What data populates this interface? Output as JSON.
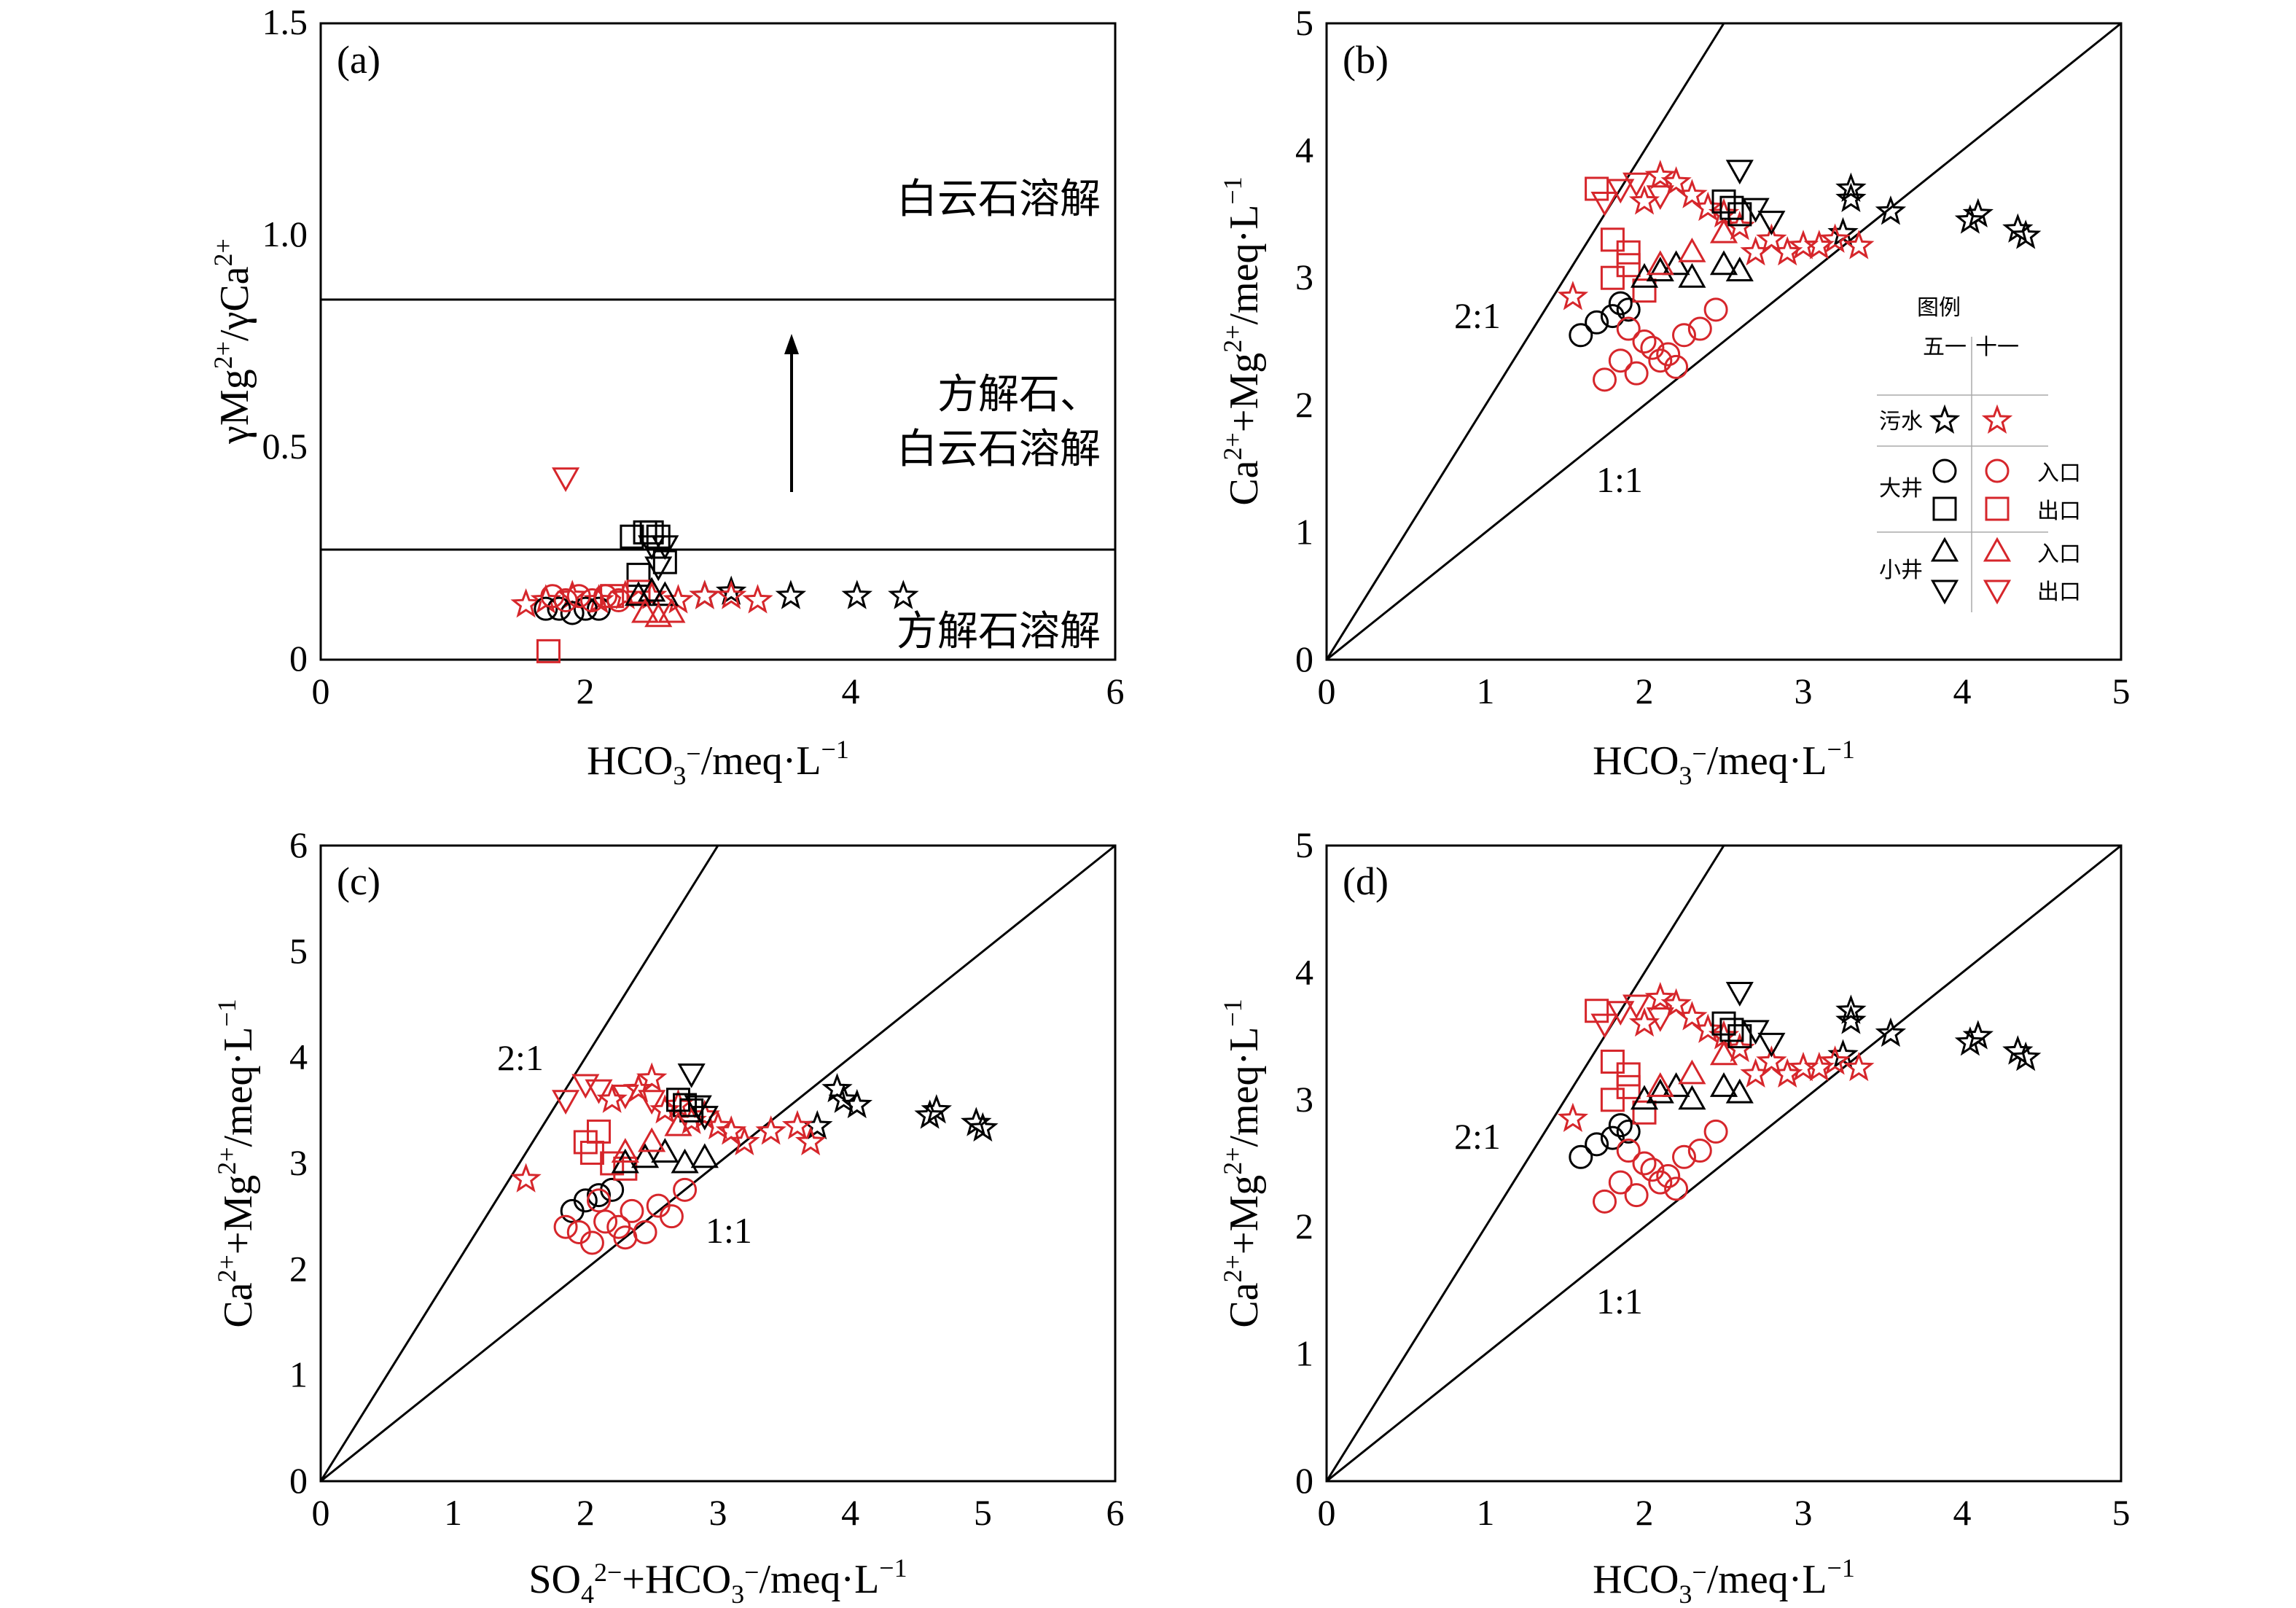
{
  "figure": {
    "legend": {
      "title": "图例",
      "col1": "五一",
      "col2": "十一",
      "rows": [
        {
          "group": "污水",
          "marker": "star",
          "sub": ""
        },
        {
          "group": "大井",
          "marker": "circle",
          "sub": "入口"
        },
        {
          "group": "",
          "marker": "square",
          "sub": "出口"
        },
        {
          "group": "小井",
          "marker": "triangle-up",
          "sub": "入口"
        },
        {
          "group": "",
          "marker": "triangle-down",
          "sub": "出口"
        }
      ]
    },
    "colors": {
      "wuyi": "#000000",
      "shiyi": "#d6262b"
    }
  },
  "chart_data": [
    {
      "panel": "(a)",
      "type": "scatter",
      "xlabel": "HCO3−/meq·L−1",
      "ylabel": "γMg2+/γCa2+",
      "xlim": [
        0,
        6
      ],
      "ylim": [
        0,
        1.5
      ],
      "xticks": [
        "0",
        "2",
        "4",
        "6"
      ],
      "yticks": [
        "0",
        "0.5",
        "1.0",
        "1.5"
      ],
      "hlines": [
        0.26,
        0.85
      ],
      "zones": [
        "白云石溶解",
        "方解石、",
        "白云石溶解",
        "方解石溶解"
      ],
      "series": [
        {
          "name": "五一 污水",
          "marker": "star",
          "color": "#000000",
          "x": [
            3.55,
            4.05,
            4.4,
            2.9,
            3.1
          ],
          "y": [
            0.15,
            0.15,
            0.15,
            0.15,
            0.16
          ]
        },
        {
          "name": "十一 污水",
          "marker": "star",
          "color": "#d6262b",
          "x": [
            1.55,
            1.7,
            1.9,
            2.1,
            2.3,
            2.5,
            2.7,
            2.9,
            3.1,
            3.3
          ],
          "y": [
            0.13,
            0.14,
            0.15,
            0.14,
            0.15,
            0.15,
            0.14,
            0.15,
            0.15,
            0.14
          ]
        },
        {
          "name": "五一 大井入口",
          "marker": "circle",
          "color": "#000000",
          "x": [
            1.7,
            1.8,
            1.9,
            2.0,
            2.1
          ],
          "y": [
            0.12,
            0.12,
            0.11,
            0.12,
            0.12
          ]
        },
        {
          "name": "十一 大井入口",
          "marker": "circle",
          "color": "#d6262b",
          "x": [
            1.75,
            1.85,
            1.95,
            2.05,
            2.15,
            2.25
          ],
          "y": [
            0.15,
            0.14,
            0.15,
            0.14,
            0.15,
            0.14
          ]
        },
        {
          "name": "五一 大井出口",
          "marker": "square",
          "color": "#000000",
          "x": [
            2.35,
            2.45,
            2.5,
            2.55,
            2.6,
            2.4
          ],
          "y": [
            0.29,
            0.3,
            0.3,
            0.29,
            0.23,
            0.2
          ]
        },
        {
          "name": "十一 大井出口",
          "marker": "square",
          "color": "#d6262b",
          "x": [
            1.72,
            2.2,
            2.4
          ],
          "y": [
            0.02,
            0.15,
            0.16
          ]
        },
        {
          "name": "五一 小井入口",
          "marker": "triangle-up",
          "color": "#000000",
          "x": [
            2.4,
            2.5,
            2.6
          ],
          "y": [
            0.15,
            0.16,
            0.15
          ]
        },
        {
          "name": "十一 小井入口",
          "marker": "triangle-up",
          "color": "#d6262b",
          "x": [
            2.45,
            2.55,
            2.65
          ],
          "y": [
            0.11,
            0.1,
            0.11
          ]
        },
        {
          "name": "五一 小井出口",
          "marker": "triangle-down",
          "color": "#000000",
          "x": [
            2.5,
            2.6,
            2.55
          ],
          "y": [
            0.27,
            0.27,
            0.22
          ]
        },
        {
          "name": "十一 小井出口",
          "marker": "triangle-down",
          "color": "#d6262b",
          "x": [
            1.85
          ],
          "y": [
            0.43
          ]
        }
      ]
    },
    {
      "panel": "(b)",
      "type": "scatter",
      "xlabel": "HCO3−/meq·L−1",
      "ylabel": "Ca2++Mg2+/meq·L−1",
      "xlim": [
        0,
        5
      ],
      "ylim": [
        0,
        5
      ],
      "xticks": [
        "0",
        "1",
        "2",
        "3",
        "4",
        "5"
      ],
      "yticks": [
        "0",
        "1",
        "2",
        "3",
        "4",
        "5"
      ],
      "reflines": [
        {
          "label": "2:1",
          "slope": 2
        },
        {
          "label": "1:1",
          "slope": 1
        }
      ],
      "series": [
        {
          "name": "五一 污水",
          "marker": "star",
          "color": "#000000",
          "x": [
            3.3,
            3.3,
            3.25,
            3.55,
            4.05,
            4.1,
            4.35,
            4.4
          ],
          "y": [
            3.7,
            3.62,
            3.35,
            3.52,
            3.45,
            3.5,
            3.38,
            3.33
          ]
        },
        {
          "name": "十一 污水",
          "marker": "star",
          "color": "#d6262b",
          "x": [
            1.55,
            2.0,
            2.2,
            2.4,
            2.6,
            2.8,
            3.0,
            3.2,
            3.35,
            2.1,
            2.3,
            2.5,
            2.7,
            2.9,
            3.1
          ],
          "y": [
            2.85,
            3.6,
            3.75,
            3.55,
            3.4,
            3.3,
            3.25,
            3.3,
            3.25,
            3.8,
            3.65,
            3.5,
            3.2,
            3.2,
            3.25
          ]
        },
        {
          "name": "五一 大井入口",
          "marker": "circle",
          "color": "#000000",
          "x": [
            1.6,
            1.7,
            1.8,
            1.85,
            1.9
          ],
          "y": [
            2.55,
            2.65,
            2.7,
            2.8,
            2.75
          ]
        },
        {
          "name": "十一 大井入口",
          "marker": "circle",
          "color": "#d6262b",
          "x": [
            1.75,
            1.85,
            1.95,
            2.05,
            2.15,
            2.25,
            2.35,
            2.45,
            1.9,
            2.0,
            2.1,
            2.2
          ],
          "y": [
            2.2,
            2.35,
            2.25,
            2.45,
            2.4,
            2.55,
            2.6,
            2.75,
            2.6,
            2.5,
            2.35,
            2.3
          ]
        },
        {
          "name": "五一 大井出口",
          "marker": "square",
          "color": "#000000",
          "x": [
            2.5,
            2.55,
            2.6
          ],
          "y": [
            3.6,
            3.55,
            3.5
          ]
        },
        {
          "name": "十一 大井出口",
          "marker": "square",
          "color": "#d6262b",
          "x": [
            1.7,
            1.8,
            1.9,
            1.8,
            1.9,
            2.0
          ],
          "y": [
            3.7,
            3.3,
            3.2,
            3.0,
            3.1,
            2.9
          ]
        },
        {
          "name": "五一 小井入口",
          "marker": "triangle-up",
          "color": "#000000",
          "x": [
            2.0,
            2.1,
            2.2,
            2.3,
            2.5,
            2.6
          ],
          "y": [
            3.0,
            3.05,
            3.1,
            3.0,
            3.1,
            3.05
          ]
        },
        {
          "name": "十一 小井入口",
          "marker": "triangle-up",
          "color": "#d6262b",
          "x": [
            2.1,
            2.3,
            2.5
          ],
          "y": [
            3.1,
            3.2,
            3.35
          ]
        },
        {
          "name": "五一 小井出口",
          "marker": "triangle-down",
          "color": "#000000",
          "x": [
            2.6,
            2.7,
            2.8
          ],
          "y": [
            3.85,
            3.55,
            3.45
          ]
        },
        {
          "name": "十一 小井出口",
          "marker": "triangle-down",
          "color": "#d6262b",
          "x": [
            1.75,
            1.85,
            1.95,
            2.1
          ],
          "y": [
            3.6,
            3.7,
            3.75,
            3.65
          ]
        }
      ]
    },
    {
      "panel": "(c)",
      "type": "scatter",
      "xlabel": "SO42−+HCO3−/meq·L−1",
      "ylabel": "Ca2++Mg2+/meq·L−1",
      "xlim": [
        0,
        6
      ],
      "ylim": [
        0,
        6
      ],
      "xticks": [
        "0",
        "1",
        "2",
        "3",
        "4",
        "5",
        "6"
      ],
      "yticks": [
        "0",
        "1",
        "2",
        "3",
        "4",
        "5",
        "6"
      ],
      "reflines": [
        {
          "label": "2:1",
          "slope": 2
        },
        {
          "label": "1:1",
          "slope": 1
        }
      ],
      "series": [
        {
          "name": "五一 污水",
          "marker": "star",
          "color": "#000000",
          "x": [
            3.9,
            3.95,
            4.05,
            3.75,
            4.6,
            4.65,
            4.95,
            5.0
          ],
          "y": [
            3.7,
            3.6,
            3.55,
            3.35,
            3.45,
            3.5,
            3.38,
            3.33
          ]
        },
        {
          "name": "十一 污水",
          "marker": "star",
          "color": "#d6262b",
          "x": [
            1.55,
            2.2,
            2.4,
            2.6,
            2.8,
            3.0,
            3.2,
            3.4,
            3.6,
            3.7,
            2.5,
            2.7,
            2.9,
            3.1
          ],
          "y": [
            2.85,
            3.6,
            3.7,
            3.5,
            3.4,
            3.35,
            3.2,
            3.3,
            3.35,
            3.2,
            3.8,
            3.55,
            3.45,
            3.3
          ]
        },
        {
          "name": "五一 大井入口",
          "marker": "circle",
          "color": "#000000",
          "x": [
            1.9,
            2.0,
            2.1,
            2.2
          ],
          "y": [
            2.55,
            2.65,
            2.7,
            2.75
          ]
        },
        {
          "name": "十一 大井入口",
          "marker": "circle",
          "color": "#d6262b",
          "x": [
            1.85,
            1.95,
            2.05,
            2.15,
            2.25,
            2.35,
            2.45,
            2.55,
            2.65,
            2.75,
            2.1,
            2.3
          ],
          "y": [
            2.4,
            2.35,
            2.25,
            2.45,
            2.4,
            2.55,
            2.35,
            2.6,
            2.5,
            2.75,
            2.65,
            2.3
          ]
        },
        {
          "name": "五一 大井出口",
          "marker": "square",
          "color": "#000000",
          "x": [
            2.7,
            2.75,
            2.8
          ],
          "y": [
            3.6,
            3.55,
            3.5
          ]
        },
        {
          "name": "十一 大井出口",
          "marker": "square",
          "color": "#d6262b",
          "x": [
            2.0,
            2.05,
            2.1,
            2.2,
            2.3
          ],
          "y": [
            3.2,
            3.1,
            3.3,
            3.0,
            2.95
          ]
        },
        {
          "name": "五一 小井入口",
          "marker": "triangle-up",
          "color": "#000000",
          "x": [
            2.3,
            2.45,
            2.6,
            2.75,
            2.9
          ],
          "y": [
            3.0,
            3.05,
            3.1,
            3.0,
            3.05
          ]
        },
        {
          "name": "十一 小井入口",
          "marker": "triangle-up",
          "color": "#d6262b",
          "x": [
            2.3,
            2.5,
            2.7
          ],
          "y": [
            3.1,
            3.2,
            3.35
          ]
        },
        {
          "name": "五一 小井出口",
          "marker": "triangle-down",
          "color": "#000000",
          "x": [
            2.8,
            2.85,
            2.9
          ],
          "y": [
            3.85,
            3.55,
            3.45
          ]
        },
        {
          "name": "十一 小井出口",
          "marker": "triangle-down",
          "color": "#d6262b",
          "x": [
            1.85,
            2.0,
            2.1,
            2.3,
            2.5
          ],
          "y": [
            3.6,
            3.75,
            3.7,
            3.65,
            3.6
          ]
        }
      ]
    },
    {
      "panel": "(d)",
      "type": "scatter",
      "xlabel": "HCO3−/meq·L−1",
      "ylabel": "Ca2++Mg2+/meq·L−1",
      "xlim": [
        0,
        5
      ],
      "ylim": [
        0,
        5
      ],
      "xticks": [
        "0",
        "1",
        "2",
        "3",
        "4",
        "5"
      ],
      "yticks": [
        "0",
        "1",
        "2",
        "3",
        "4",
        "5"
      ],
      "reflines": [
        {
          "label": "2:1",
          "slope": 2
        },
        {
          "label": "1:1",
          "slope": 1
        }
      ],
      "series": [
        {
          "name": "五一 污水",
          "marker": "star",
          "color": "#000000",
          "x": [
            3.3,
            3.3,
            3.25,
            3.55,
            4.05,
            4.1,
            4.35,
            4.4
          ],
          "y": [
            3.7,
            3.62,
            3.35,
            3.52,
            3.45,
            3.5,
            3.38,
            3.33
          ]
        },
        {
          "name": "十一 污水",
          "marker": "star",
          "color": "#d6262b",
          "x": [
            1.55,
            2.0,
            2.2,
            2.4,
            2.6,
            2.8,
            3.0,
            3.2,
            3.35,
            2.1,
            2.3,
            2.5,
            2.7,
            2.9,
            3.1
          ],
          "y": [
            2.85,
            3.6,
            3.75,
            3.55,
            3.4,
            3.3,
            3.25,
            3.3,
            3.25,
            3.8,
            3.65,
            3.5,
            3.2,
            3.2,
            3.25
          ]
        },
        {
          "name": "五一 大井入口",
          "marker": "circle",
          "color": "#000000",
          "x": [
            1.6,
            1.7,
            1.8,
            1.85,
            1.9
          ],
          "y": [
            2.55,
            2.65,
            2.7,
            2.8,
            2.75
          ]
        },
        {
          "name": "十一 大井入口",
          "marker": "circle",
          "color": "#d6262b",
          "x": [
            1.75,
            1.85,
            1.95,
            2.05,
            2.15,
            2.25,
            2.35,
            2.45,
            1.9,
            2.0,
            2.1,
            2.2
          ],
          "y": [
            2.2,
            2.35,
            2.25,
            2.45,
            2.4,
            2.55,
            2.6,
            2.75,
            2.6,
            2.5,
            2.35,
            2.3
          ]
        },
        {
          "name": "五一 大井出口",
          "marker": "square",
          "color": "#000000",
          "x": [
            2.5,
            2.55,
            2.6
          ],
          "y": [
            3.6,
            3.55,
            3.5
          ]
        },
        {
          "name": "十一 大井出口",
          "marker": "square",
          "color": "#d6262b",
          "x": [
            1.7,
            1.8,
            1.9,
            1.8,
            1.9,
            2.0
          ],
          "y": [
            3.7,
            3.3,
            3.2,
            3.0,
            3.1,
            2.9
          ]
        },
        {
          "name": "五一 小井入口",
          "marker": "triangle-up",
          "color": "#000000",
          "x": [
            2.0,
            2.1,
            2.2,
            2.3,
            2.5,
            2.6
          ],
          "y": [
            3.0,
            3.05,
            3.1,
            3.0,
            3.1,
            3.05
          ]
        },
        {
          "name": "十一 小井入口",
          "marker": "triangle-up",
          "color": "#d6262b",
          "x": [
            2.1,
            2.3,
            2.5
          ],
          "y": [
            3.1,
            3.2,
            3.35
          ]
        },
        {
          "name": "五一 小井出口",
          "marker": "triangle-down",
          "color": "#000000",
          "x": [
            2.6,
            2.7,
            2.8
          ],
          "y": [
            3.85,
            3.55,
            3.45
          ]
        },
        {
          "name": "十一 小井出口",
          "marker": "triangle-down",
          "color": "#d6262b",
          "x": [
            1.75,
            1.85,
            1.95,
            2.1
          ],
          "y": [
            3.6,
            3.7,
            3.75,
            3.65
          ]
        }
      ]
    }
  ]
}
